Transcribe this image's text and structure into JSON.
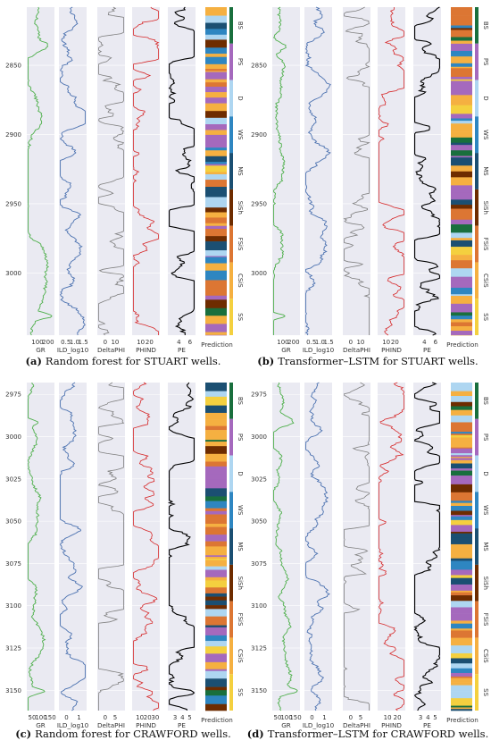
{
  "figure": {
    "panels": [
      {
        "id": "a",
        "letter": "(a)",
        "caption": "Random forest for STUART wells."
      },
      {
        "id": "b",
        "letter": "(b)",
        "caption": "Transformer–LSTM for STUART wells."
      },
      {
        "id": "c",
        "letter": "(c)",
        "caption": "Random forest for CRAWFORD wells."
      },
      {
        "id": "d",
        "letter": "(d)",
        "caption": "Transformer–LSTM for CRAWFORD wells."
      }
    ]
  },
  "facies": [
    {
      "code": "SS",
      "color": "#F4D03F"
    },
    {
      "code": "CSiS",
      "color": "#F5B041"
    },
    {
      "code": "FSiS",
      "color": "#DC7633"
    },
    {
      "code": "SiSh",
      "color": "#6E2C00"
    },
    {
      "code": "MS",
      "color": "#1B4F72"
    },
    {
      "code": "WS",
      "color": "#2E86C1"
    },
    {
      "code": "D",
      "color": "#AED6F1"
    },
    {
      "code": "PS",
      "color": "#A569BD"
    },
    {
      "code": "BS",
      "color": "#196F3D"
    }
  ],
  "curve_colors": {
    "GR": "#4daf4a",
    "ILD_log10": "#4c72b0",
    "DeltaPHI": "#7f7f7f",
    "PHIND": "#d62728",
    "PE": "#000000"
  },
  "chart_data": [
    {
      "type": "line",
      "panel": "a",
      "well": "STUART",
      "depth_ticks": [
        "2850",
        "2900",
        "2950",
        "3000"
      ],
      "ylim": [
        2808,
        3045
      ],
      "tracks": [
        {
          "name": "GR",
          "xticks": [
            "100",
            "200"
          ],
          "xlim": [
            0,
            260
          ]
        },
        {
          "name": "ILD_log10",
          "xticks": [
            "0.5",
            "1.0",
            "1.5"
          ],
          "xlim": [
            0.1,
            1.7
          ]
        },
        {
          "name": "DeltaPHI",
          "xticks": [
            "0",
            "10"
          ],
          "xlim": [
            -8,
            20
          ]
        },
        {
          "name": "PHIND",
          "xticks": [
            "10",
            "20"
          ],
          "xlim": [
            0,
            32
          ]
        },
        {
          "name": "PE",
          "xticks": [
            "4",
            "6"
          ],
          "xlim": [
            2,
            7
          ]
        }
      ],
      "prediction_label": "Prediction"
    },
    {
      "type": "line",
      "panel": "b",
      "well": "STUART",
      "depth_ticks": [
        "2850",
        "2900",
        "2950",
        "3000"
      ],
      "ylim": [
        2808,
        3045
      ],
      "tracks": [
        {
          "name": "GR",
          "xticks": [
            "100",
            "200"
          ],
          "xlim": [
            0,
            260
          ]
        },
        {
          "name": "ILD_log10",
          "xticks": [
            "0.5",
            "1.0",
            "1.5"
          ],
          "xlim": [
            0.1,
            1.7
          ]
        },
        {
          "name": "DeltaPHI",
          "xticks": [
            "0",
            "10"
          ],
          "xlim": [
            -8,
            20
          ]
        },
        {
          "name": "PHIND",
          "xticks": [
            "10",
            "20"
          ],
          "xlim": [
            0,
            32
          ]
        },
        {
          "name": "PE",
          "xticks": [
            "4",
            "6"
          ],
          "xlim": [
            2,
            7
          ]
        }
      ],
      "prediction_label": "Prediction"
    },
    {
      "type": "line",
      "panel": "c",
      "well": "CRAWFORD",
      "depth_ticks": [
        "2975",
        "3000",
        "3025",
        "3050",
        "3075",
        "3100",
        "3125",
        "3150"
      ],
      "ylim": [
        2968,
        3162
      ],
      "tracks": [
        {
          "name": "GR",
          "xticks": [
            "50",
            "100",
            "150"
          ],
          "xlim": [
            20,
            175
          ]
        },
        {
          "name": "ILD_log10",
          "xticks": [
            "0",
            "1"
          ],
          "xlim": [
            -0.6,
            1.6
          ]
        },
        {
          "name": "DeltaPHI",
          "xticks": [
            "0",
            "5"
          ],
          "xlim": [
            -4,
            10
          ]
        },
        {
          "name": "PHIND",
          "xticks": [
            "10",
            "20",
            "30"
          ],
          "xlim": [
            0,
            36
          ]
        },
        {
          "name": "PE",
          "xticks": [
            "3",
            "4",
            "5"
          ],
          "xlim": [
            2,
            5.8
          ]
        }
      ],
      "prediction_label": "Prediction"
    },
    {
      "type": "line",
      "panel": "d",
      "well": "CRAWFORD",
      "depth_ticks": [
        "2975",
        "3000",
        "3025",
        "3050",
        "3075",
        "3100",
        "3125",
        "3150"
      ],
      "ylim": [
        2968,
        3162
      ],
      "tracks": [
        {
          "name": "GR",
          "xticks": [
            "50",
            "100",
            "150"
          ],
          "xlim": [
            20,
            175
          ]
        },
        {
          "name": "ILD_log10",
          "xticks": [
            "0",
            "1"
          ],
          "xlim": [
            -0.6,
            1.6
          ]
        },
        {
          "name": "DeltaPHI",
          "xticks": [
            "0",
            "5"
          ],
          "xlim": [
            -4,
            10
          ]
        },
        {
          "name": "PHIND",
          "xticks": [
            "10",
            "20"
          ],
          "xlim": [
            0,
            28
          ]
        },
        {
          "name": "PE",
          "xticks": [
            "3",
            "4",
            "5"
          ],
          "xlim": [
            2,
            5.8
          ]
        }
      ],
      "prediction_label": "Prediction"
    }
  ]
}
